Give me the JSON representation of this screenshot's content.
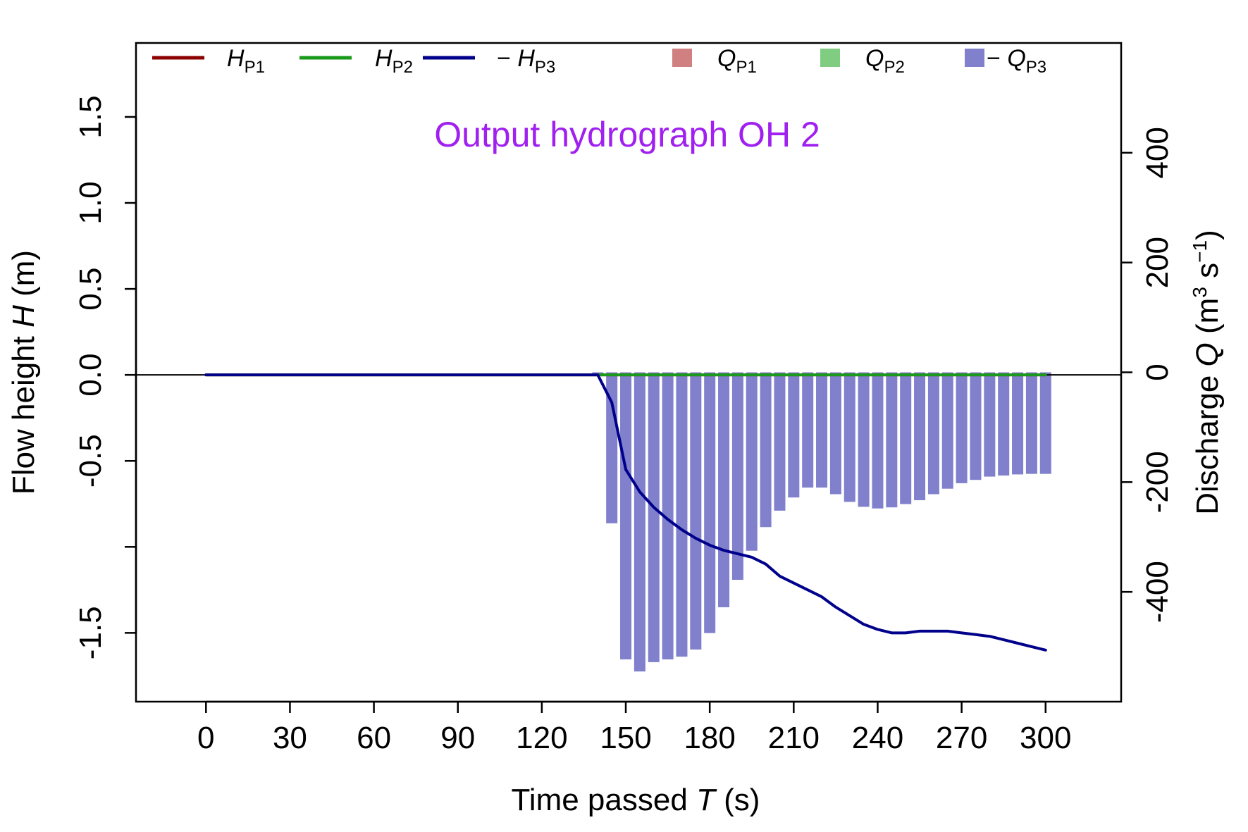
{
  "chart_data": {
    "type": "line+bar",
    "title": "Output hydrograph OH 2",
    "x_axis": {
      "label_main": "Time passed",
      "label_var": "T",
      "label_unit": "(s)",
      "range": [
        -25,
        327
      ],
      "ticks": [
        0,
        30,
        60,
        90,
        120,
        150,
        180,
        210,
        240,
        270,
        300
      ]
    },
    "y_left": {
      "label_main": "Flow height",
      "label_var": "H",
      "label_unit": "(m)",
      "range": [
        -1.9,
        1.93
      ],
      "ticks": [
        -1.5,
        -1.0,
        -0.5,
        0.0,
        0.5,
        1.0,
        1.5
      ],
      "tick_labels": [
        "-1.5",
        "",
        "-0.5",
        "0.0",
        "0.5",
        "1.0",
        "1.5"
      ]
    },
    "y_right": {
      "label_main": "Discharge",
      "label_var": "Q",
      "label_unit_open": "(m",
      "label_unit_exp1": "3",
      "label_unit_mid": " s",
      "label_unit_exp2": "−1",
      "label_unit_close": ")",
      "range": [
        -600,
        600
      ],
      "ticks": [
        -400,
        -200,
        0,
        200,
        400
      ]
    },
    "legend": {
      "position": "top",
      "items": [
        {
          "kind": "line",
          "prefix": "",
          "var": "H",
          "sub": "P1",
          "color": "#8b0000"
        },
        {
          "kind": "line",
          "prefix": "",
          "var": "H",
          "sub": "P2",
          "color": "#1a9a1a"
        },
        {
          "kind": "line",
          "prefix": "− ",
          "var": "H",
          "sub": "P3",
          "color": "#00008b"
        },
        {
          "kind": "box",
          "prefix": "",
          "var": "Q",
          "sub": "P1",
          "color": "#d08080"
        },
        {
          "kind": "box",
          "prefix": "",
          "var": "Q",
          "sub": "P2",
          "color": "#80cc80"
        },
        {
          "kind": "box",
          "prefix": "− ",
          "var": "Q",
          "sub": "P3",
          "color": "#8080cc"
        }
      ]
    },
    "lines": [
      {
        "name": "H_P1",
        "color": "#8b0000",
        "x": [
          0,
          300
        ],
        "y": [
          0,
          0
        ]
      },
      {
        "name": "H_P2",
        "color": "#1a9a1a",
        "x": [
          0,
          300
        ],
        "y": [
          0,
          0
        ]
      },
      {
        "name": "-H_P3",
        "color": "#00008b",
        "x": [
          0,
          135,
          140,
          145,
          150,
          155,
          160,
          165,
          170,
          175,
          180,
          185,
          190,
          195,
          200,
          205,
          210,
          215,
          220,
          225,
          230,
          235,
          240,
          245,
          250,
          255,
          260,
          265,
          270,
          275,
          280,
          285,
          290,
          295,
          300
        ],
        "y": [
          0,
          0,
          0,
          -0.16,
          -0.55,
          -0.68,
          -0.77,
          -0.84,
          -0.9,
          -0.95,
          -0.99,
          -1.02,
          -1.04,
          -1.06,
          -1.1,
          -1.17,
          -1.21,
          -1.25,
          -1.29,
          -1.35,
          -1.4,
          -1.45,
          -1.48,
          -1.5,
          -1.5,
          -1.49,
          -1.49,
          -1.49,
          -1.5,
          -1.51,
          -1.52,
          -1.54,
          -1.56,
          -1.58,
          -1.6
        ]
      }
    ],
    "bars": {
      "name": "-Q_P3",
      "color": "#8080cc",
      "x": [
        140,
        145,
        150,
        155,
        160,
        165,
        170,
        175,
        180,
        185,
        190,
        195,
        200,
        205,
        210,
        215,
        220,
        225,
        230,
        235,
        240,
        245,
        250,
        255,
        260,
        265,
        270,
        275,
        280,
        285,
        290,
        295,
        300
      ],
      "values": [
        -5,
        -275,
        -523,
        -545,
        -528,
        -523,
        -518,
        -505,
        -475,
        -428,
        -378,
        -325,
        -282,
        -252,
        -228,
        -210,
        -210,
        -222,
        -236,
        -245,
        -248,
        -246,
        -240,
        -233,
        -222,
        -212,
        -202,
        -196,
        -190,
        -188,
        -186,
        -185,
        -185
      ]
    }
  }
}
